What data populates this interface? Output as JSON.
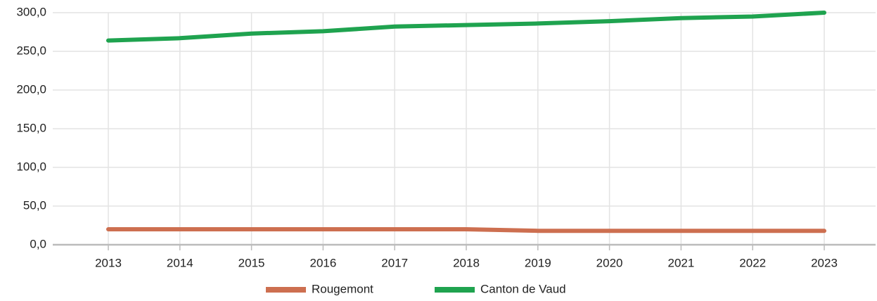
{
  "chart_data": {
    "type": "line",
    "categories": [
      "2013",
      "2014",
      "2015",
      "2016",
      "2017",
      "2018",
      "2019",
      "2020",
      "2021",
      "2022",
      "2023"
    ],
    "series": [
      {
        "name": "Rougemont",
        "color": "#cd6f50",
        "values": [
          20,
          20,
          20,
          20,
          20,
          20,
          18,
          18,
          18,
          18,
          18
        ]
      },
      {
        "name": "Canton de Vaud",
        "color": "#1fa34f",
        "values": [
          264,
          267,
          273,
          276,
          282,
          284,
          286,
          289,
          293,
          295,
          300
        ]
      }
    ],
    "ylim": [
      0,
      300
    ],
    "yticks": [
      {
        "value": 0,
        "label": "0,0"
      },
      {
        "value": 50,
        "label": "50,0"
      },
      {
        "value": 100,
        "label": "100,0"
      },
      {
        "value": 150,
        "label": "150,0"
      },
      {
        "value": 200,
        "label": "200,0"
      },
      {
        "value": 250,
        "label": "250,0"
      },
      {
        "value": 300,
        "label": "300,0"
      }
    ],
    "grid": true,
    "legend": "bottom"
  }
}
